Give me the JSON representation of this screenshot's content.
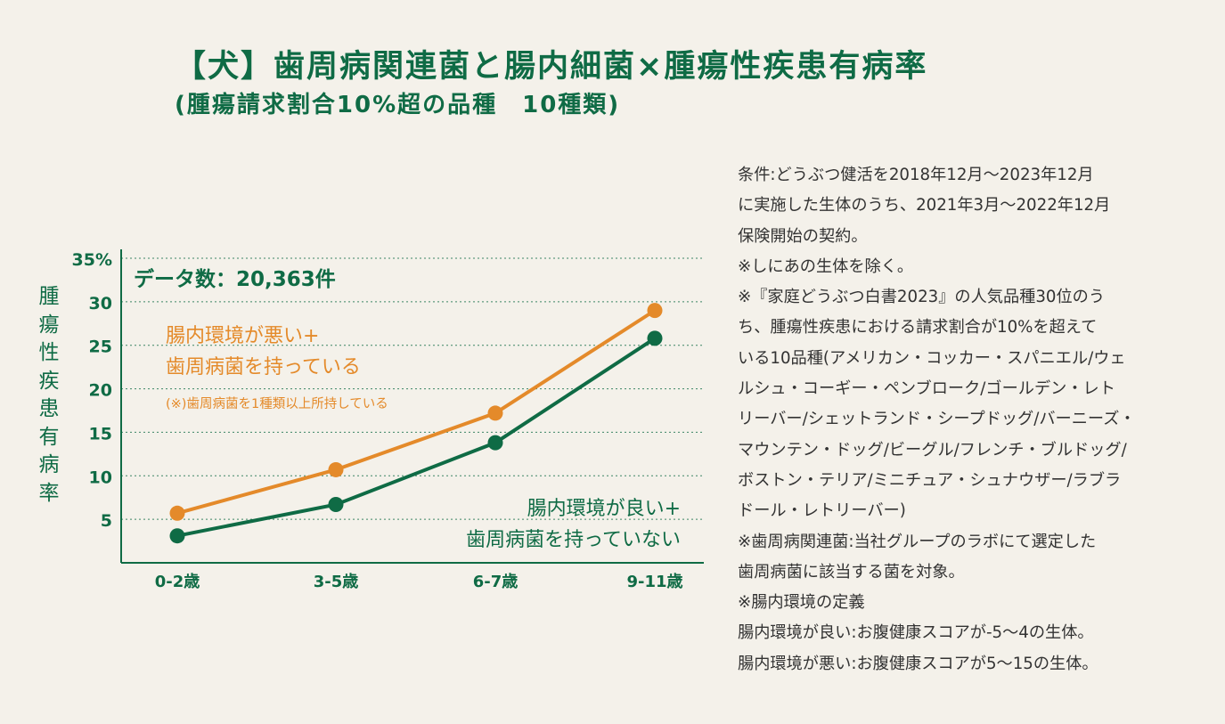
{
  "title": "【犬】歯周病関連菌と腸内細菌×腫瘍性疾患有病率",
  "subtitle": "(腫瘍請求割合10%超の品種　10種類)",
  "chart_data": {
    "type": "line",
    "categories": [
      "0-2歳",
      "3-5歳",
      "6-7歳",
      "9-11歳"
    ],
    "ylabel": "腫瘍性疾患有病率",
    "ylim": [
      0,
      35
    ],
    "yticks": [
      "5",
      "10",
      "15",
      "20",
      "25",
      "30",
      "35%"
    ],
    "grid": true,
    "data_count_label": "データ数：20,363件",
    "series": [
      {
        "values": [
          5.7,
          10.7,
          17.2,
          29.0
        ],
        "color": "#e48a2a",
        "label_lines": [
          "腸内環境が悪い+",
          "歯周病菌を持っている"
        ],
        "note": "(※)歯周病菌を1種類以上所持している"
      },
      {
        "values": [
          3.1,
          6.7,
          13.8,
          25.8
        ],
        "color": "#0f6b45",
        "label_lines": [
          "腸内環境が良い+",
          "歯周病菌を持っていない"
        ]
      }
    ]
  },
  "notes": [
    "条件:どうぶつ健活を2018年12月〜2023年12月",
    "に実施した生体のうち、2021年3月〜2022年12月",
    "保険開始の契約。",
    "※しにあの生体を除く。",
    "※『家庭どうぶつ白書2023』の人気品種30位のう",
    "ち、腫瘍性疾患における請求割合が10%を超えて",
    "いる10品種(アメリカン・コッカー・スパニエル/ウェ",
    "ルシュ・コーギー・ペンブローク/ゴールデン・レト",
    "リーバー/シェットランド・シープドッグ/バーニーズ・",
    "マウンテン・ドッグ/ビーグル/フレンチ・ブルドッグ/",
    "ボストン・テリア/ミニチュア・シュナウザー/ラブラ",
    "ドール・レトリーバー)",
    "※歯周病関連菌:当社グループのラボにて選定した",
    "歯周病菌に該当する菌を対象。",
    "※腸内環境の定義",
    "腸内環境が良い:お腹健康スコアが-5〜4の生体。",
    "腸内環境が悪い:お腹健康スコアが5〜15の生体。"
  ]
}
